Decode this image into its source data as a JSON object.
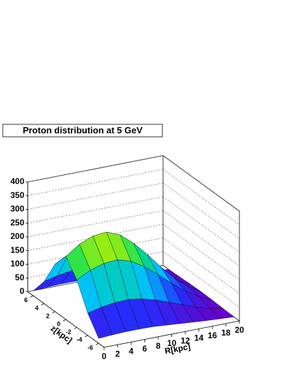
{
  "chart_data": {
    "type": "surface",
    "title": "Proton distribution at 5 GeV",
    "xlabel": "R[kpc]",
    "ylabel": "z[kpc]",
    "x": [
      0,
      2,
      4,
      6,
      8,
      10,
      12,
      14,
      16,
      18,
      20
    ],
    "y": [
      -6,
      -4,
      -2,
      0,
      2,
      4,
      6
    ],
    "values": [
      [
        18,
        21,
        23,
        23,
        22,
        18,
        14,
        10,
        6,
        3,
        0
      ],
      [
        81,
        93,
        100,
        102,
        95,
        81,
        63,
        44,
        26,
        12,
        2
      ],
      [
        173,
        199,
        214,
        218,
        203,
        173,
        135,
        94,
        56,
        26,
        4
      ],
      [
        230,
        265,
        285,
        290,
        270,
        230,
        180,
        125,
        75,
        35,
        5
      ],
      [
        173,
        199,
        214,
        218,
        203,
        173,
        135,
        94,
        56,
        26,
        4
      ],
      [
        81,
        93,
        100,
        102,
        95,
        81,
        63,
        44,
        26,
        12,
        2
      ],
      [
        18,
        21,
        23,
        23,
        22,
        18,
        14,
        10,
        6,
        3,
        0
      ]
    ],
    "xlim": [
      0,
      20
    ],
    "xticks": [
      0,
      2,
      4,
      6,
      8,
      10,
      12,
      14,
      16,
      18,
      20
    ],
    "ylim": [
      -7,
      7
    ],
    "yticks": [
      -6,
      -4,
      -2,
      0,
      2,
      4,
      6
    ],
    "zlim": [
      0,
      400
    ],
    "zticks": [
      0,
      50,
      100,
      150,
      200,
      250,
      300,
      350,
      400
    ],
    "grid": true,
    "palette": [
      "#6a00c8",
      "#2030ff",
      "#00c0ff",
      "#00e060",
      "#c0f000",
      "#ffb000",
      "#ff2000"
    ]
  }
}
